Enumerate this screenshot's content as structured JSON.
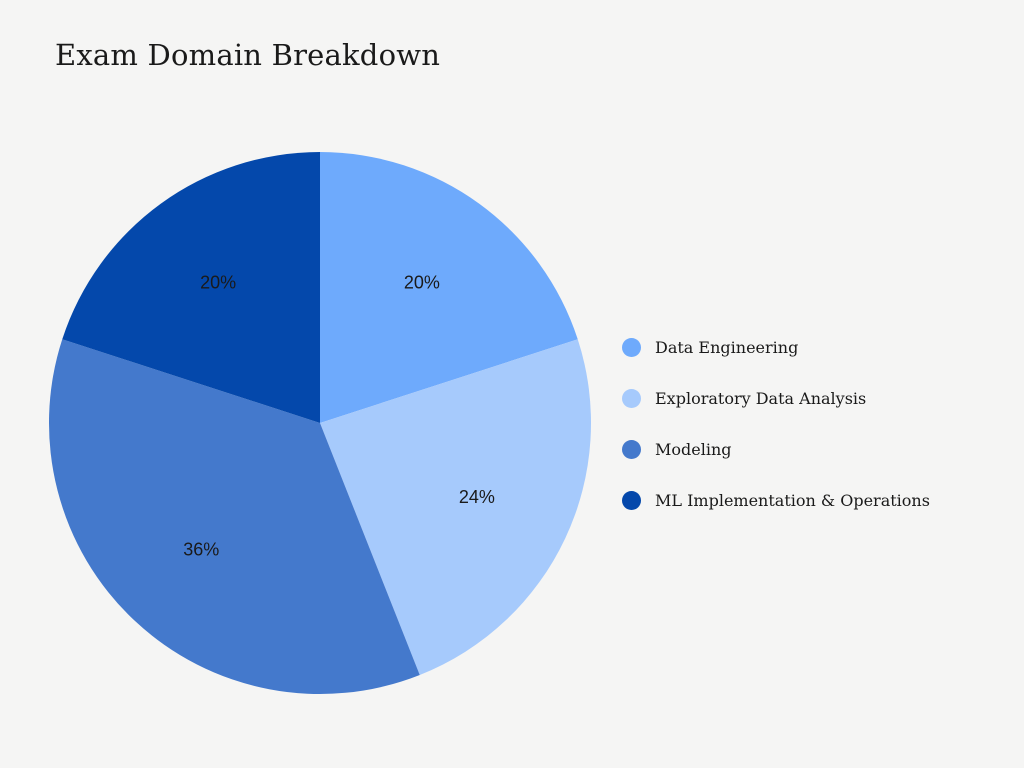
{
  "chart_data": {
    "type": "pie",
    "title": "Exam Domain Breakdown",
    "categories": [
      "Data Engineering",
      "Exploratory Data Analysis",
      "Modeling",
      "ML Implementation & Operations"
    ],
    "values": [
      20,
      24,
      36,
      20
    ],
    "value_labels": [
      "20%",
      "24%",
      "36%",
      "20%"
    ],
    "colors": [
      "#6eaafc",
      "#a6cafc",
      "#4479cc",
      "#0448ab"
    ],
    "legend_position": "right"
  }
}
